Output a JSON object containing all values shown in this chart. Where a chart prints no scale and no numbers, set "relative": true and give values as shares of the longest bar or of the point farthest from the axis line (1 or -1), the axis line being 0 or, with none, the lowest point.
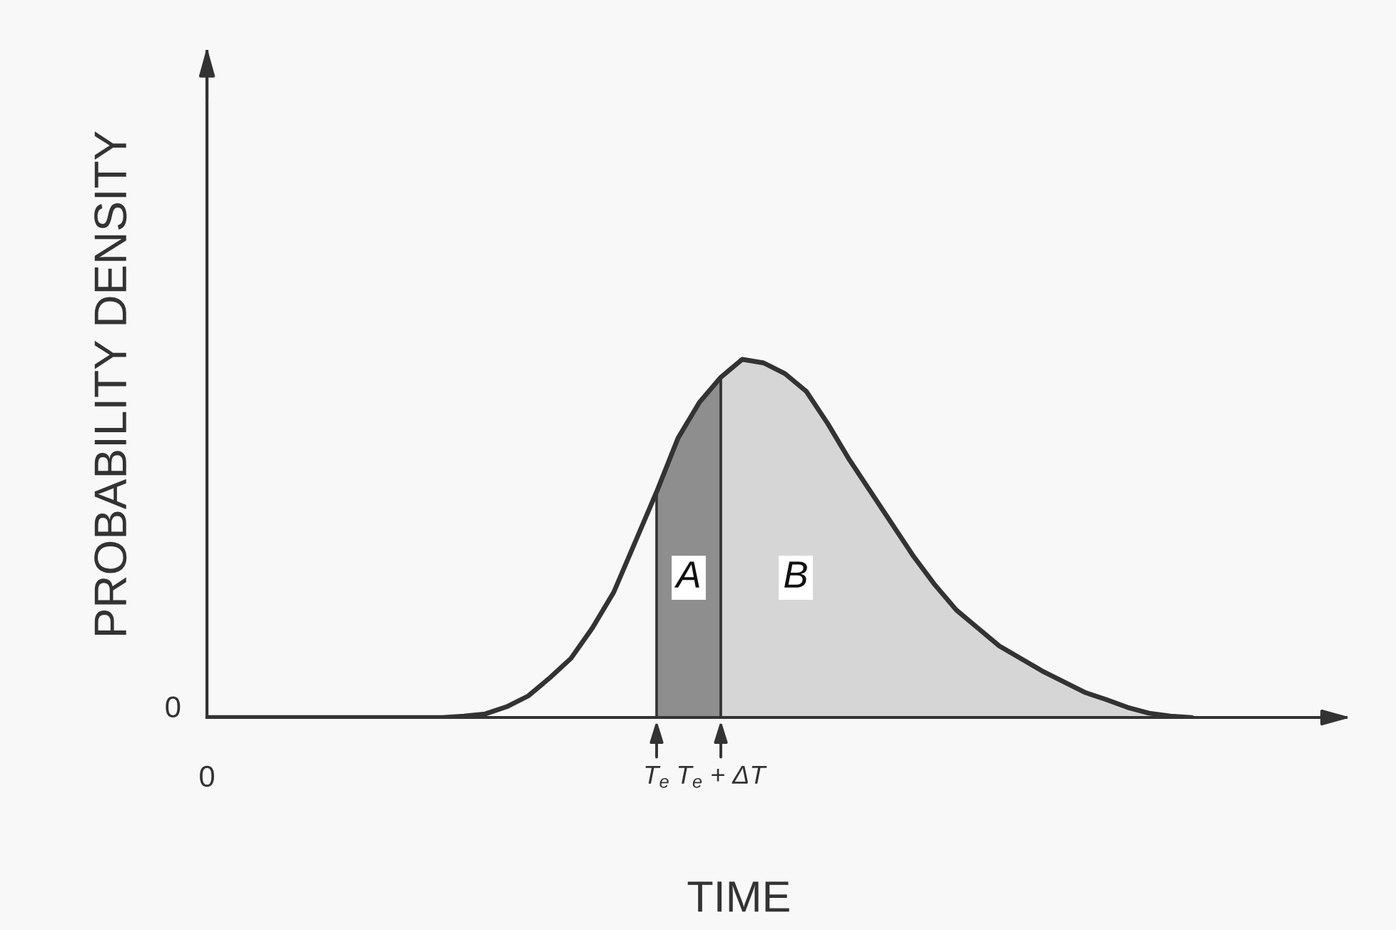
{
  "chart_data": {
    "type": "line",
    "relative": true,
    "xlabel": "TIME",
    "ylabel": "PROBABILITY DENSITY",
    "annotations": [
      "0"
    ],
    "categories": [
      "0",
      null,
      null,
      null,
      null,
      null,
      null,
      null,
      null,
      null,
      null,
      null,
      null,
      null,
      null,
      null,
      null,
      null,
      null,
      null,
      null,
      "T$_{e}$",
      null,
      null,
      "T$_{e}$ + ΔT",
      null,
      null,
      null,
      null,
      null,
      null,
      null,
      null,
      null,
      null,
      null,
      null,
      null,
      null,
      null,
      null,
      null,
      null,
      null,
      null,
      null,
      null,
      null,
      null,
      null,
      null,
      null,
      null
    ],
    "series": [
      {
        "type": "area",
        "name": "A",
        "color": "#8e8e8e",
        "values": [
          null,
          null,
          null,
          null,
          null,
          null,
          null,
          null,
          null,
          null,
          null,
          null,
          null,
          null,
          null,
          null,
          null,
          null,
          null,
          null,
          null,
          0.63,
          0.78,
          0.88,
          0.95,
          null,
          null,
          null,
          null,
          null,
          null,
          null,
          null,
          null,
          null,
          null,
          null,
          null,
          null,
          null,
          null,
          null,
          null,
          null,
          null,
          null,
          null,
          null,
          null,
          null,
          null,
          null,
          null
        ]
      },
      {
        "type": "area",
        "name": "B",
        "color": "#d6d6d6",
        "values": [
          null,
          null,
          null,
          null,
          null,
          null,
          null,
          null,
          null,
          null,
          null,
          null,
          null,
          null,
          null,
          null,
          null,
          null,
          null,
          null,
          null,
          null,
          null,
          null,
          0.95,
          1,
          0.99,
          0.96,
          0.91,
          0.82,
          0.72,
          0.63,
          0.54,
          0.45,
          0.37,
          0.3,
          0.25,
          0.2,
          0.165,
          0.13,
          0.1,
          0.07,
          0.05,
          0.028,
          0.012,
          0.004,
          0,
          null,
          null,
          null,
          null,
          null,
          null
        ]
      },
      {
        "color": "#333333",
        "values": [
          0,
          0,
          0,
          0,
          0,
          0,
          0,
          0,
          0,
          0,
          0,
          0,
          0.004,
          0.01,
          0.03,
          0.06,
          0.11,
          0.165,
          0.25,
          0.35,
          0.49,
          0.63,
          0.78,
          0.88,
          0.95,
          1,
          0.99,
          0.96,
          0.91,
          0.82,
          0.72,
          0.63,
          0.54,
          0.45,
          0.37,
          0.3,
          0.25,
          0.2,
          0.165,
          0.13,
          0.1,
          0.07,
          0.05,
          0.028,
          0.012,
          0.004,
          0,
          null,
          null,
          null,
          null,
          null,
          null
        ]
      }
    ]
  }
}
